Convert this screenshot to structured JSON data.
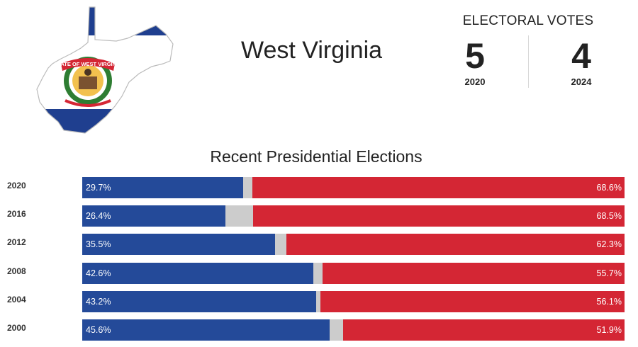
{
  "header": {
    "state_name": "West Virginia",
    "seal_text": "STATE OF WEST VIRGINIA"
  },
  "electoral_votes": {
    "title": "ELECTORAL VOTES",
    "items": [
      {
        "value": "5",
        "year": "2020"
      },
      {
        "value": "4",
        "year": "2024"
      }
    ]
  },
  "colors": {
    "democrat": "#244a99",
    "republican": "#d42634",
    "other": "#cccccc",
    "map_blue": "#1f3f8f"
  },
  "chart_data": {
    "type": "bar",
    "title": "Recent Presidential Elections",
    "orientation": "horizontal-stacked",
    "categories": [
      "2020",
      "2016",
      "2012",
      "2008",
      "2004",
      "2000"
    ],
    "series": [
      {
        "values": [
          29.7,
          26.4,
          35.5,
          42.6,
          43.2,
          45.6
        ],
        "color": "#244a99"
      },
      {
        "values": [
          1.7,
          5.1,
          2.2,
          1.7,
          0.7,
          2.5
        ],
        "color": "#cccccc"
      },
      {
        "values": [
          68.6,
          68.5,
          62.3,
          55.7,
          56.1,
          51.9
        ],
        "color": "#d42634"
      }
    ],
    "labels": {
      "left": [
        "29.7%",
        "26.4%",
        "35.5%",
        "42.6%",
        "43.2%",
        "45.6%"
      ],
      "right": [
        "68.6%",
        "68.5%",
        "62.3%",
        "55.7%",
        "56.1%",
        "51.9%"
      ]
    },
    "xlim": [
      0,
      100
    ]
  }
}
